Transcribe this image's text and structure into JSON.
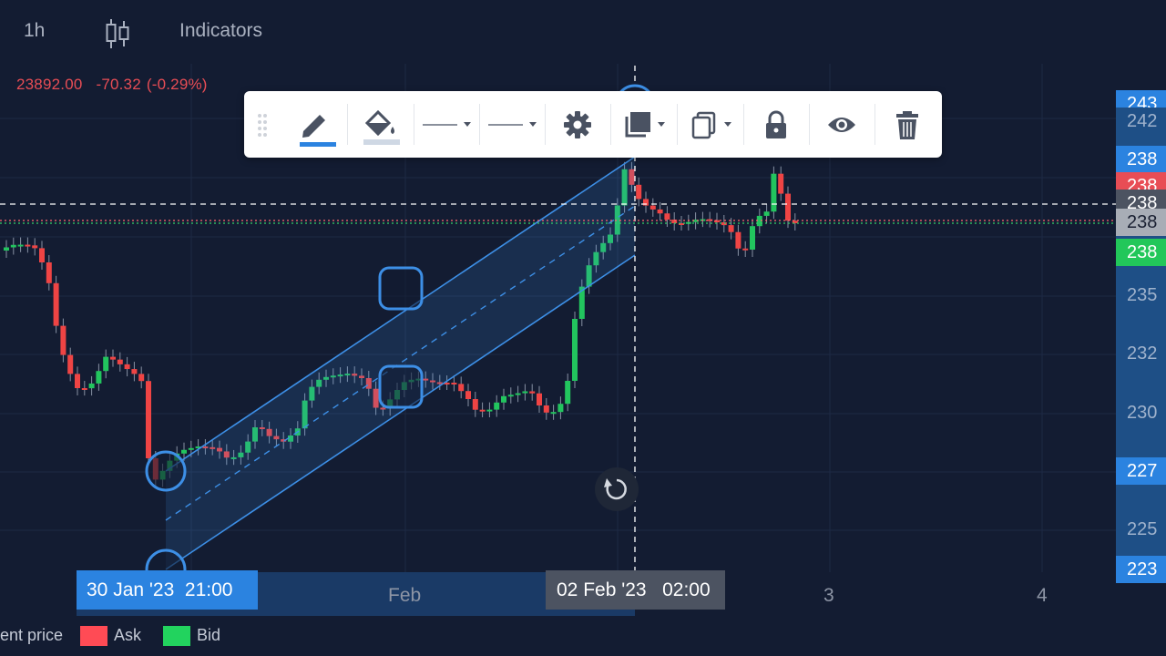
{
  "topbar": {
    "timeframe": "1h",
    "chart_type_icon": "candlestick-icon",
    "indicators_label": "Indicators"
  },
  "quote": {
    "price": "23892.00",
    "change": "-70.32",
    "change_pct": "(-0.29%)"
  },
  "toolbar": {
    "tools": [
      {
        "icon": "pencil-icon"
      },
      {
        "icon": "fill-bucket-icon"
      },
      {
        "icon": "line-style-icon"
      },
      {
        "icon": "line-width-icon"
      },
      {
        "icon": "gear-icon"
      },
      {
        "icon": "layers-icon"
      },
      {
        "icon": "copy-icon"
      },
      {
        "icon": "lock-icon"
      },
      {
        "icon": "eye-icon"
      },
      {
        "icon": "trash-icon"
      }
    ]
  },
  "x_axis": {
    "range_start_label": "30 Jan '23  21:00",
    "month_label": "Feb",
    "cursor_label": "02 Feb '23   02:00",
    "tick_3": "3",
    "tick_4": "4"
  },
  "price_axis": {
    "tags": [
      {
        "text": "243",
        "bg": "#2b83e0",
        "fg": "#ffffff"
      },
      {
        "text": "242",
        "bg": "#1e4f86",
        "fg": "#9fb2cc"
      },
      {
        "text": "238",
        "bg": "#2b83e0",
        "fg": "#ffffff"
      },
      {
        "text": "238",
        "bg": "#e84d55",
        "fg": "#ffffff"
      },
      {
        "text": "238",
        "bg": "#4c5361",
        "fg": "#ffffff"
      },
      {
        "text": "238",
        "bg": "#a8adb6",
        "fg": "#1a2032"
      },
      {
        "text": "238",
        "bg": "#22c75a",
        "fg": "#ffffff"
      },
      {
        "text": "235",
        "bg": "#1e4f86",
        "fg": "#9fb2cc"
      },
      {
        "text": "232",
        "bg": "#1e4f86",
        "fg": "#9fb2cc"
      },
      {
        "text": "230",
        "bg": "#1e4f86",
        "fg": "#9fb2cc"
      },
      {
        "text": "227",
        "bg": "#2b83e0",
        "fg": "#ffffff"
      },
      {
        "text": "225",
        "bg": "#1e4f86",
        "fg": "#9fb2cc"
      },
      {
        "text": "223",
        "bg": "#2b83e0",
        "fg": "#ffffff"
      }
    ]
  },
  "legend": {
    "current_price_label": "ent price",
    "ask_label": "Ask",
    "bid_label": "Bid",
    "ask_color": "#ff4b55",
    "bid_color": "#22d35e"
  },
  "colors": {
    "background": "#131c32",
    "bull_candle": "#22c55e",
    "bear_candle": "#ef4444",
    "channel": "#3d8fe6"
  }
}
